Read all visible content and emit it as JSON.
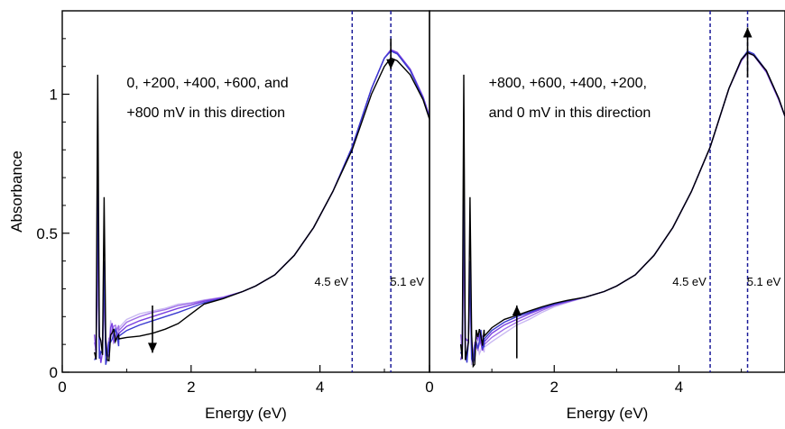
{
  "chart_data": [
    {
      "type": "line",
      "panel": "left",
      "xlabel": "Energy (eV)",
      "ylabel": "Absorbance",
      "xlim": [
        0,
        5.7
      ],
      "ylim": [
        0,
        1.3
      ],
      "xticks": [
        0,
        2,
        4
      ],
      "xtick_labels": [
        "0",
        "2",
        "4"
      ],
      "yticks": [
        0,
        0.5,
        1
      ],
      "ytick_labels": [
        "0",
        "0.5",
        "1"
      ],
      "annotation": [
        "0, +200, +400, +600, and",
        "+800 mV in this direction"
      ],
      "vlines": [
        {
          "x": 4.5,
          "label": "4.5 eV",
          "color": "#1a1a99"
        },
        {
          "x": 5.1,
          "label": "5.1 eV",
          "color": "#1a1a99"
        }
      ],
      "arrows": [
        {
          "x": 5.1,
          "y_from": 1.2,
          "y_to": 1.09,
          "direction": "down"
        },
        {
          "x": 1.4,
          "y_from": 0.24,
          "y_to": 0.07,
          "direction": "down"
        }
      ],
      "series": [
        {
          "color": "#c9b8f2",
          "x": [
            0.88,
            1.0,
            1.2,
            1.4,
            1.6,
            1.8,
            2.0,
            2.2,
            2.5,
            2.8,
            3.0,
            3.3,
            3.6,
            3.9,
            4.2,
            4.5,
            4.8,
            5.0,
            5.1,
            5.2,
            5.4,
            5.6,
            5.7
          ],
          "y": [
            0.16,
            0.19,
            0.21,
            0.22,
            0.23,
            0.245,
            0.25,
            0.26,
            0.27,
            0.29,
            0.31,
            0.35,
            0.42,
            0.52,
            0.65,
            0.81,
            1.02,
            1.13,
            1.16,
            1.15,
            1.09,
            0.99,
            0.92
          ]
        },
        {
          "color": "#a070e8",
          "x": [
            0.88,
            1.0,
            1.2,
            1.4,
            1.6,
            1.8,
            2.0,
            2.2,
            2.5,
            2.8,
            3.0,
            3.3,
            3.6,
            3.9,
            4.2,
            4.5,
            4.8,
            5.0,
            5.1,
            5.2,
            5.4,
            5.6,
            5.7
          ],
          "y": [
            0.15,
            0.18,
            0.2,
            0.215,
            0.225,
            0.24,
            0.248,
            0.258,
            0.27,
            0.29,
            0.31,
            0.35,
            0.42,
            0.52,
            0.65,
            0.81,
            1.02,
            1.13,
            1.16,
            1.15,
            1.09,
            0.99,
            0.92
          ]
        },
        {
          "color": "#7a3fe0",
          "x": [
            0.88,
            1.0,
            1.2,
            1.4,
            1.6,
            1.8,
            2.0,
            2.2,
            2.5,
            2.8,
            3.0,
            3.3,
            3.6,
            3.9,
            4.2,
            4.5,
            4.8,
            5.0,
            5.1,
            5.2,
            5.4,
            5.6,
            5.7
          ],
          "y": [
            0.14,
            0.165,
            0.185,
            0.2,
            0.215,
            0.23,
            0.242,
            0.255,
            0.268,
            0.29,
            0.31,
            0.35,
            0.42,
            0.52,
            0.65,
            0.81,
            1.02,
            1.13,
            1.16,
            1.15,
            1.09,
            0.99,
            0.92
          ]
        },
        {
          "color": "#3a3ad0",
          "x": [
            0.88,
            1.0,
            1.2,
            1.4,
            1.6,
            1.8,
            2.0,
            2.2,
            2.5,
            2.8,
            3.0,
            3.3,
            3.6,
            3.9,
            4.2,
            4.5,
            4.8,
            5.0,
            5.1,
            5.2,
            5.4,
            5.6,
            5.7
          ],
          "y": [
            0.13,
            0.15,
            0.17,
            0.185,
            0.2,
            0.215,
            0.232,
            0.25,
            0.266,
            0.29,
            0.31,
            0.35,
            0.42,
            0.52,
            0.65,
            0.81,
            1.02,
            1.13,
            1.155,
            1.145,
            1.085,
            0.985,
            0.915
          ]
        },
        {
          "color": "#000000",
          "x": [
            0.88,
            1.0,
            1.2,
            1.4,
            1.6,
            1.8,
            2.0,
            2.2,
            2.5,
            2.8,
            3.0,
            3.3,
            3.6,
            3.9,
            4.2,
            4.5,
            4.8,
            5.0,
            5.1,
            5.2,
            5.4,
            5.6,
            5.7
          ],
          "y": [
            0.12,
            0.125,
            0.13,
            0.14,
            0.155,
            0.175,
            0.21,
            0.245,
            0.265,
            0.29,
            0.31,
            0.35,
            0.42,
            0.52,
            0.65,
            0.8,
            1.0,
            1.1,
            1.13,
            1.12,
            1.07,
            0.98,
            0.91
          ]
        }
      ]
    },
    {
      "type": "line",
      "panel": "right",
      "xlabel": "Energy (eV)",
      "ylabel": "",
      "xlim": [
        0,
        5.7
      ],
      "ylim": [
        0,
        1.3
      ],
      "xticks": [
        0,
        2,
        4
      ],
      "xtick_labels": [
        "0",
        "2",
        "4"
      ],
      "annotation": [
        "+800, +600, +400, +200,",
        "and 0 mV in this direction"
      ],
      "vlines": [
        {
          "x": 4.5,
          "label": "4.5 eV",
          "color": "#1a1a99"
        },
        {
          "x": 5.1,
          "label": "5.1 eV",
          "color": "#1a1a99"
        }
      ],
      "arrows": [
        {
          "x": 5.1,
          "y_from": 1.06,
          "y_to": 1.24,
          "direction": "up"
        },
        {
          "x": 1.4,
          "y_from": 0.05,
          "y_to": 0.24,
          "direction": "up"
        }
      ],
      "series": [
        {
          "color": "#c9b8f2",
          "x": [
            0.88,
            1.0,
            1.2,
            1.4,
            1.6,
            1.8,
            2.0,
            2.2,
            2.5,
            2.8,
            3.0,
            3.3,
            3.6,
            3.9,
            4.2,
            4.5,
            4.8,
            5.0,
            5.1,
            5.2,
            5.4,
            5.6,
            5.7
          ],
          "y": [
            0.09,
            0.11,
            0.14,
            0.17,
            0.19,
            0.215,
            0.235,
            0.25,
            0.27,
            0.29,
            0.31,
            0.35,
            0.42,
            0.52,
            0.65,
            0.81,
            1.02,
            1.12,
            1.145,
            1.14,
            1.08,
            0.98,
            0.92
          ]
        },
        {
          "color": "#a070e8",
          "x": [
            0.88,
            1.0,
            1.2,
            1.4,
            1.6,
            1.8,
            2.0,
            2.2,
            2.5,
            2.8,
            3.0,
            3.3,
            3.6,
            3.9,
            4.2,
            4.5,
            4.8,
            5.0,
            5.1,
            5.2,
            5.4,
            5.6,
            5.7
          ],
          "y": [
            0.1,
            0.125,
            0.155,
            0.18,
            0.2,
            0.222,
            0.24,
            0.252,
            0.27,
            0.29,
            0.31,
            0.35,
            0.42,
            0.52,
            0.65,
            0.81,
            1.02,
            1.12,
            1.15,
            1.14,
            1.08,
            0.98,
            0.92
          ]
        },
        {
          "color": "#7a3fe0",
          "x": [
            0.88,
            1.0,
            1.2,
            1.4,
            1.6,
            1.8,
            2.0,
            2.2,
            2.5,
            2.8,
            3.0,
            3.3,
            3.6,
            3.9,
            4.2,
            4.5,
            4.8,
            5.0,
            5.1,
            5.2,
            5.4,
            5.6,
            5.7
          ],
          "y": [
            0.11,
            0.14,
            0.17,
            0.19,
            0.21,
            0.228,
            0.243,
            0.254,
            0.27,
            0.29,
            0.31,
            0.35,
            0.42,
            0.52,
            0.65,
            0.81,
            1.02,
            1.12,
            1.15,
            1.14,
            1.08,
            0.98,
            0.92
          ]
        },
        {
          "color": "#3a3ad0",
          "x": [
            0.88,
            1.0,
            1.2,
            1.4,
            1.6,
            1.8,
            2.0,
            2.2,
            2.5,
            2.8,
            3.0,
            3.3,
            3.6,
            3.9,
            4.2,
            4.5,
            4.8,
            5.0,
            5.1,
            5.2,
            5.4,
            5.6,
            5.7
          ],
          "y": [
            0.12,
            0.15,
            0.18,
            0.2,
            0.215,
            0.232,
            0.245,
            0.256,
            0.27,
            0.29,
            0.31,
            0.35,
            0.42,
            0.52,
            0.65,
            0.81,
            1.02,
            1.125,
            1.155,
            1.145,
            1.085,
            0.985,
            0.92
          ]
        },
        {
          "color": "#000000",
          "x": [
            0.88,
            1.0,
            1.2,
            1.4,
            1.6,
            1.8,
            2.0,
            2.2,
            2.5,
            2.8,
            3.0,
            3.3,
            3.6,
            3.9,
            4.2,
            4.5,
            4.8,
            5.0,
            5.1,
            5.2,
            5.4,
            5.6,
            5.7
          ],
          "y": [
            0.13,
            0.16,
            0.19,
            0.205,
            0.22,
            0.235,
            0.248,
            0.258,
            0.27,
            0.29,
            0.31,
            0.35,
            0.42,
            0.52,
            0.65,
            0.81,
            1.02,
            1.125,
            1.15,
            1.14,
            1.085,
            0.985,
            0.92
          ]
        }
      ]
    }
  ]
}
